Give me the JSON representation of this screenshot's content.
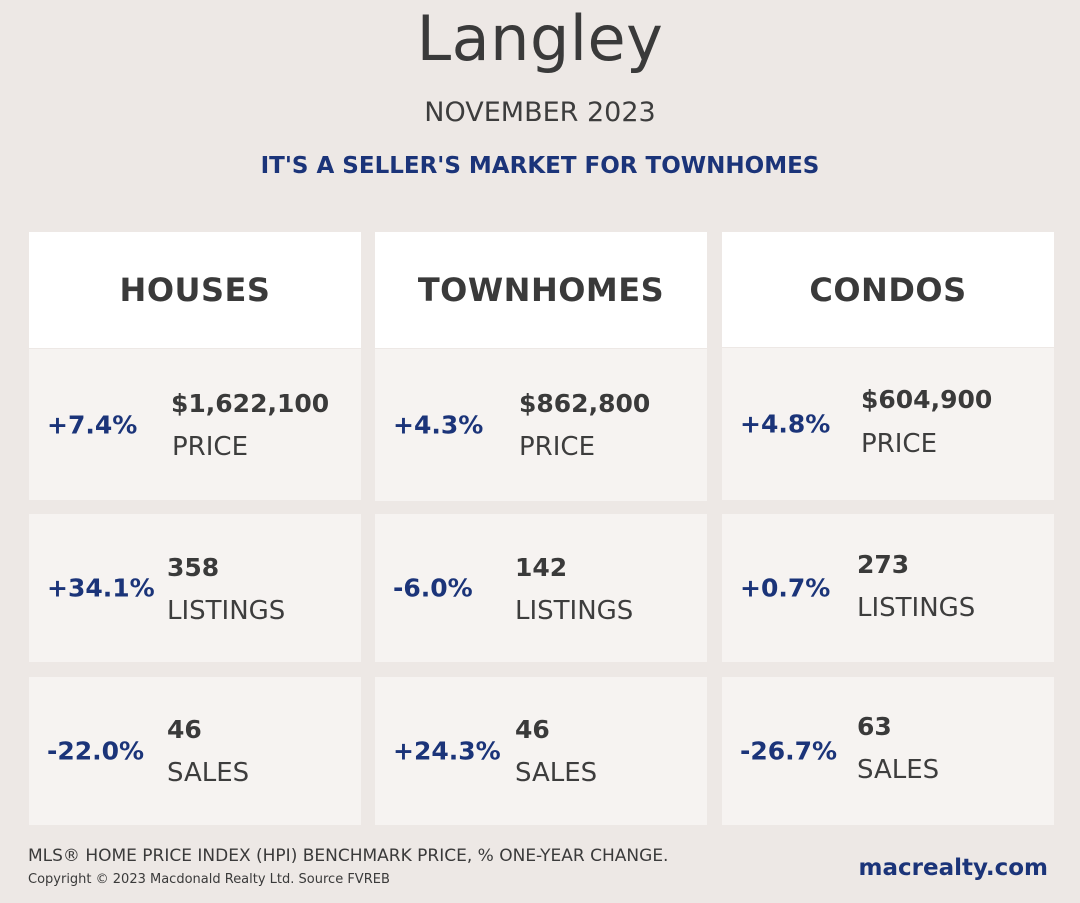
{
  "header": {
    "title": "Langley",
    "date": "NOVEMBER 2023",
    "headline": "IT'S A SELLER'S MARKET FOR TOWNHOMES"
  },
  "columns": [
    {
      "name": "HOUSES",
      "price": {
        "change": "+7.4%",
        "value": "$1,622,100",
        "label": "PRICE"
      },
      "listings": {
        "change": "+34.1%",
        "value": "358",
        "label": "LISTINGS"
      },
      "sales": {
        "change": "-22.0%",
        "value": "46",
        "label": "SALES"
      }
    },
    {
      "name": "TOWNHOMES",
      "price": {
        "change": "+4.3%",
        "value": "$862,800",
        "label": "PRICE"
      },
      "listings": {
        "change": "-6.0%",
        "value": "142",
        "label": "LISTINGS"
      },
      "sales": {
        "change": "+24.3%",
        "value": "46",
        "label": "SALES"
      }
    },
    {
      "name": "CONDOS",
      "price": {
        "change": "+4.8%",
        "value": "$604,900",
        "label": "PRICE"
      },
      "listings": {
        "change": "+0.7%",
        "value": "273",
        "label": "LISTINGS"
      },
      "sales": {
        "change": "-26.7%",
        "value": "63",
        "label": "SALES"
      }
    }
  ],
  "footer": {
    "note": "MLS® HOME PRICE INDEX (HPI) BENCHMARK PRICE, % ONE-YEAR CHANGE.",
    "copyright": "Copyright © 2023 Macdonald Realty Ltd. Source FVREB",
    "brand": "macrealty.com"
  },
  "colors": {
    "background": "#ede8e5",
    "accent": "#1b3479",
    "text": "#3a3a3a"
  }
}
